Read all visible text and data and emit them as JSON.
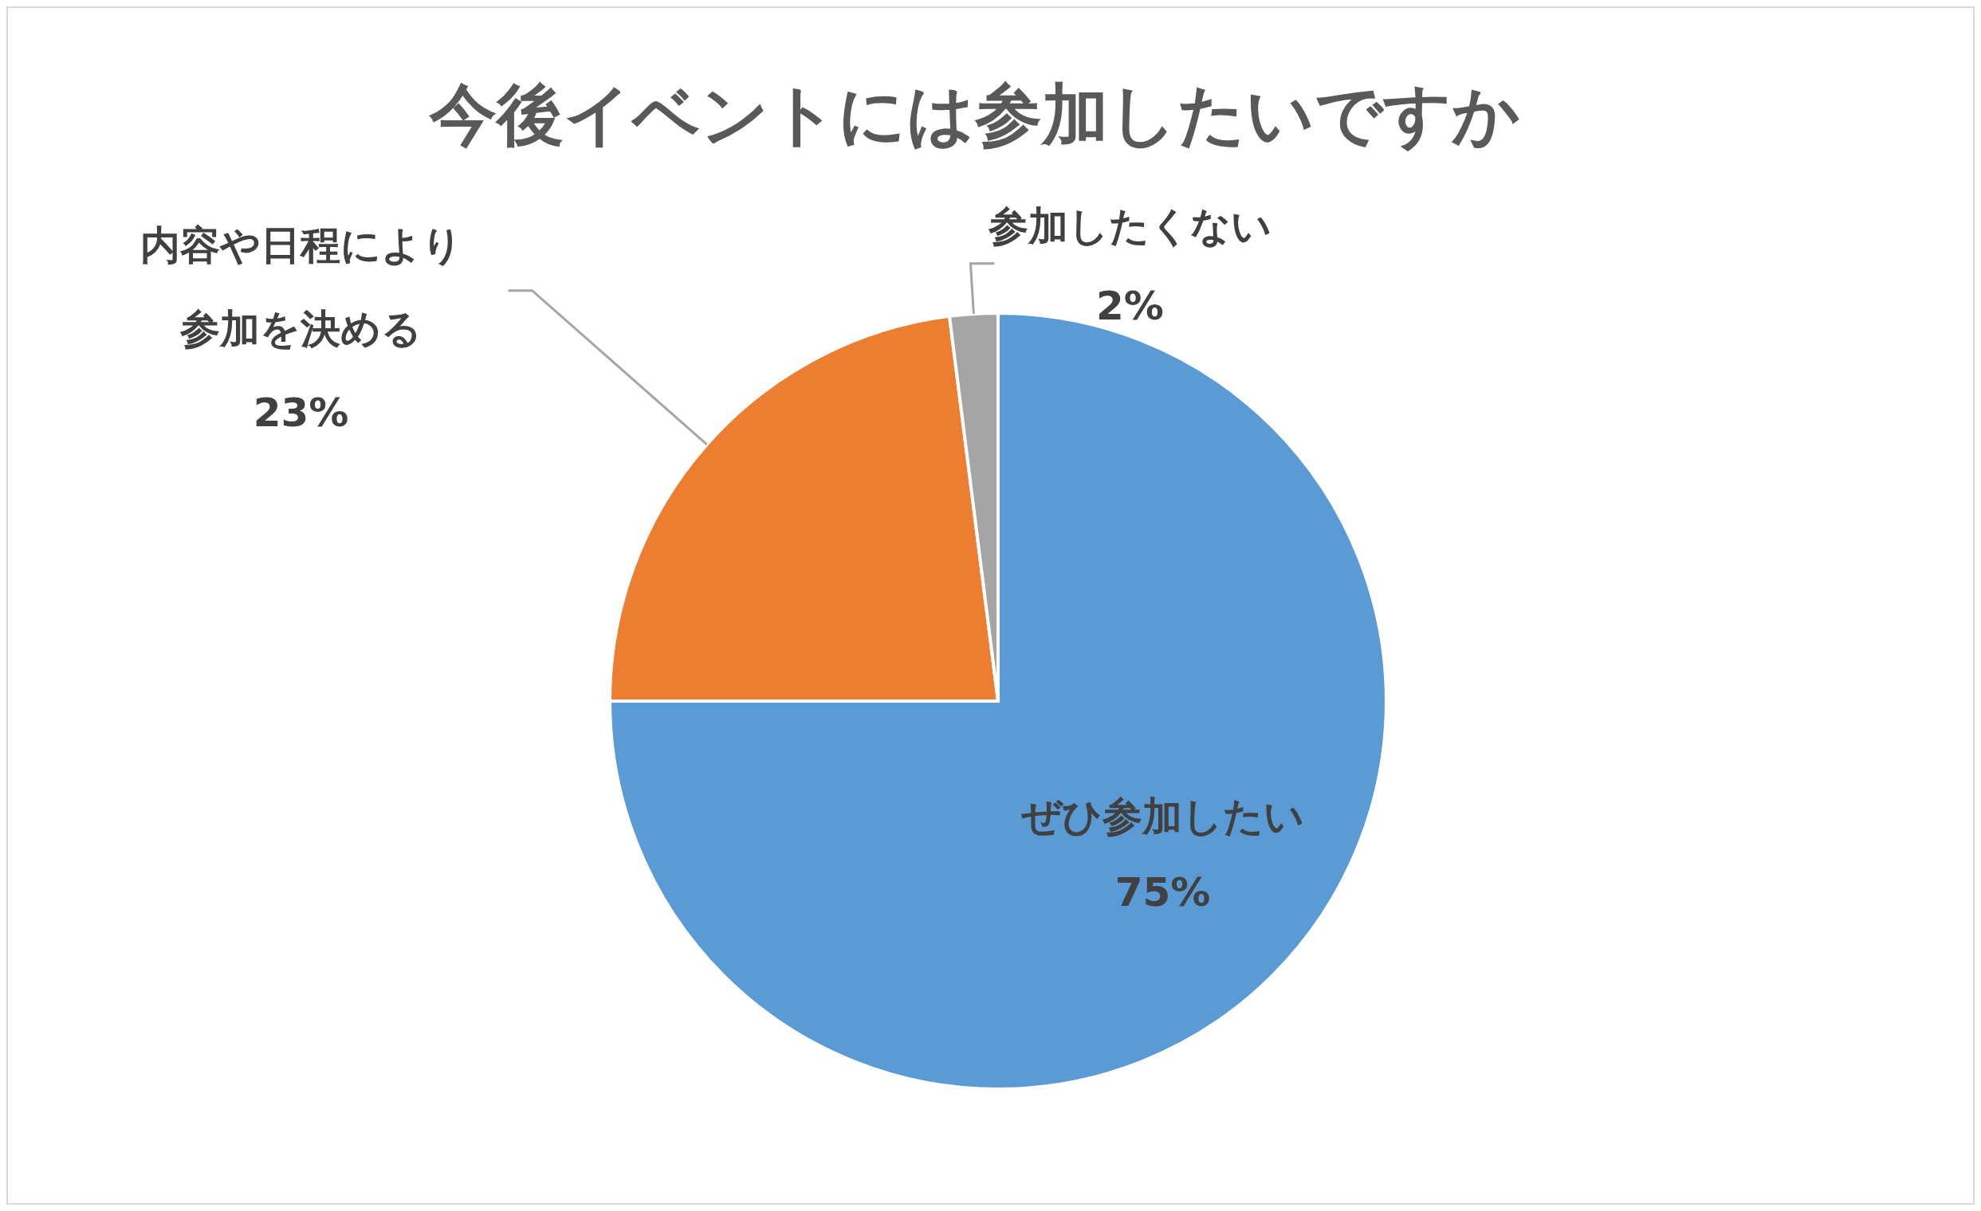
{
  "chart_data": {
    "type": "pie",
    "title": "今後イベントには参加したいですか",
    "categories": [
      "ぜひ参加したい",
      "内容や日程により参加を決める",
      "参加したくない"
    ],
    "values": [
      75,
      23,
      2
    ],
    "colors": [
      "#5b9bd5",
      "#ed7d31",
      "#a5a5a5"
    ],
    "value_labels": [
      "75%",
      "23%",
      "2%"
    ]
  }
}
